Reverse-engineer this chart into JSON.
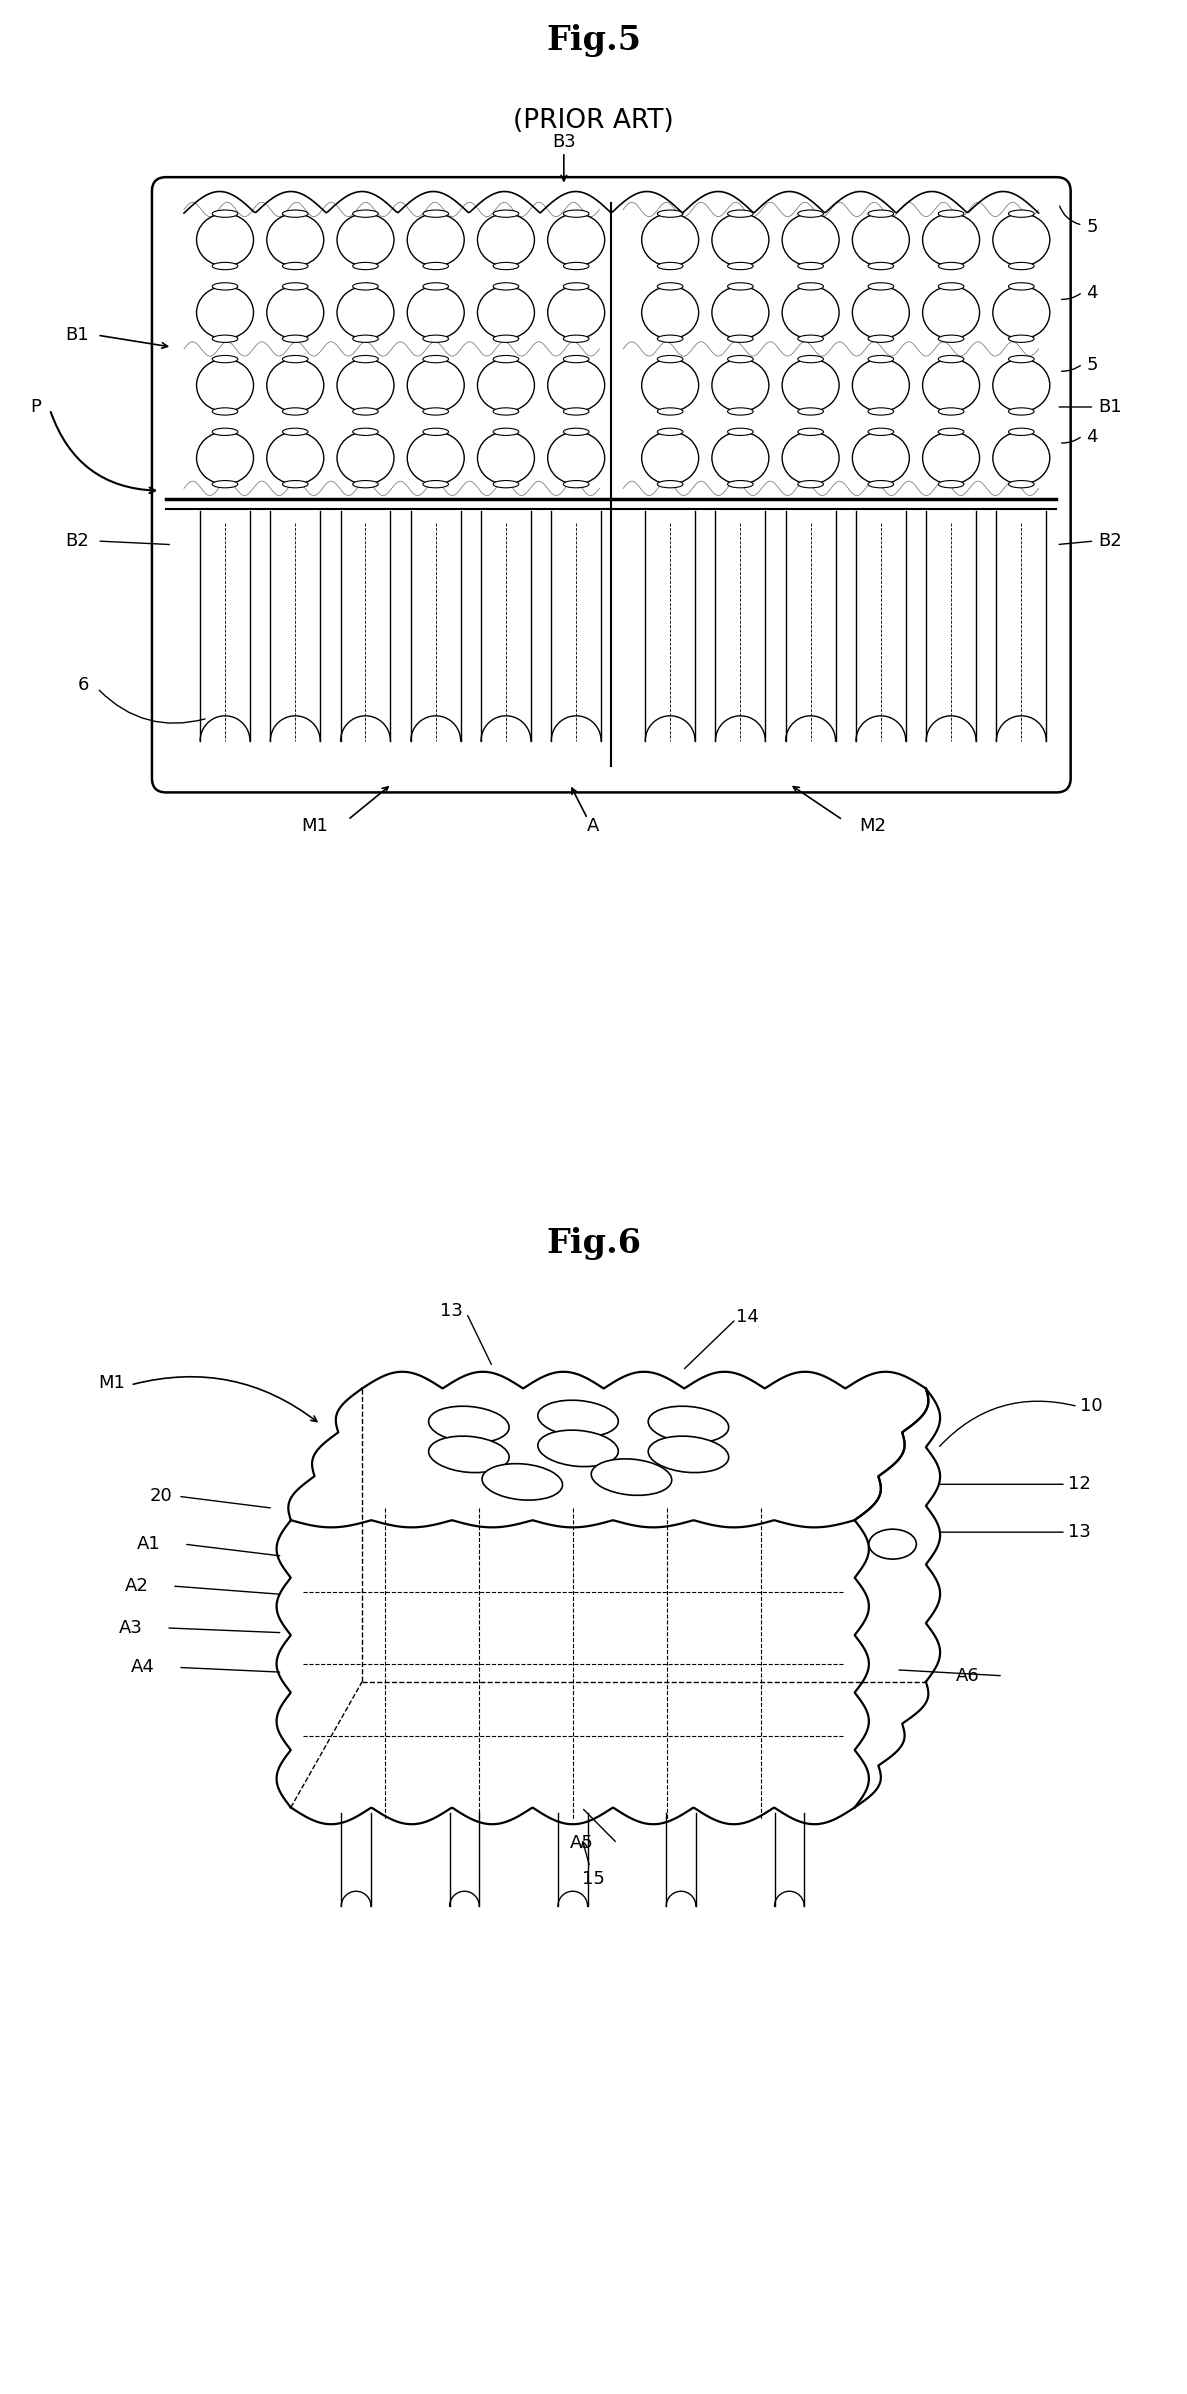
{
  "fig_title1": "Fig.5",
  "fig_subtitle1": "(PRIOR ART)",
  "fig_title2": "Fig.6",
  "bg_color": "#ffffff",
  "line_color": "#000000"
}
